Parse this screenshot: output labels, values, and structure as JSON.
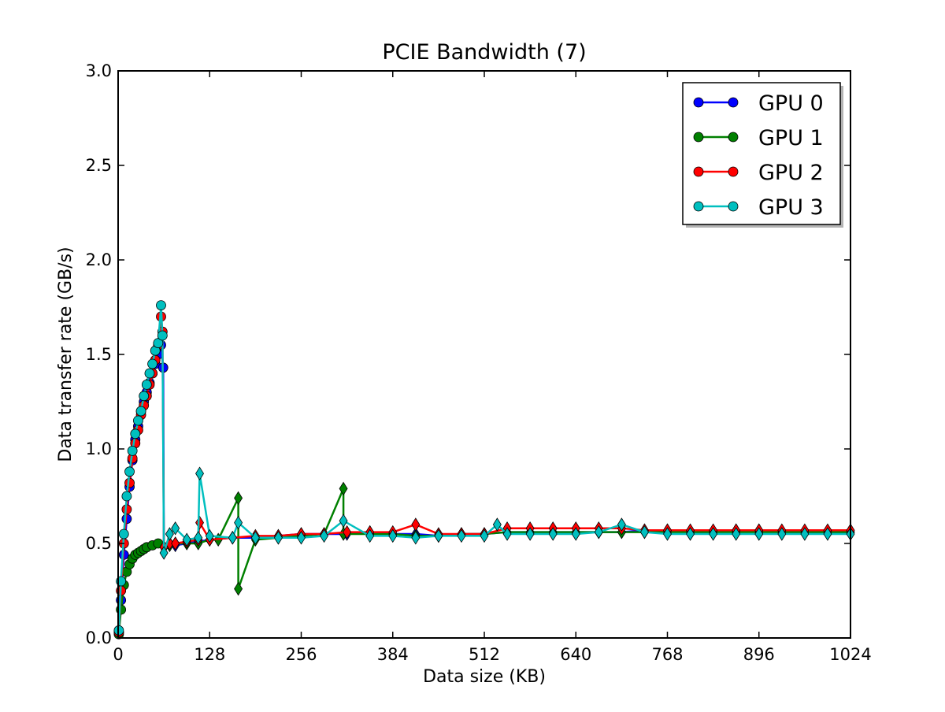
{
  "chart_data": {
    "type": "line",
    "title": "PCIE Bandwidth (7)",
    "xlabel": "Data size (KB)",
    "ylabel": "Data transfer rate (GB/s)",
    "xlim": [
      0,
      1024
    ],
    "ylim": [
      0,
      3.0
    ],
    "xticks": [
      0,
      128,
      256,
      384,
      512,
      640,
      768,
      896,
      1024
    ],
    "xtick_labels": [
      "0",
      "128",
      "256",
      "384",
      "512",
      "640",
      "768",
      "896",
      "1024"
    ],
    "yticks": [
      0,
      0.5,
      1.0,
      1.5,
      2.0,
      2.5,
      3.0
    ],
    "ytick_labels": [
      "0.0",
      "0.5",
      "1.0",
      "1.5",
      "2.0",
      "2.5",
      "3.0"
    ],
    "grid": false,
    "legend": {
      "position": "top-right",
      "entries": [
        "GPU 0",
        "GPU 1",
        "GPU 2",
        "GPU 3"
      ]
    },
    "markers": "circle below 64 KB, diamond above",
    "series": [
      {
        "name": "GPU 0",
        "color": "#0000ff",
        "x": [
          1,
          4,
          8,
          12,
          16,
          20,
          24,
          28,
          32,
          36,
          40,
          44,
          48,
          52,
          56,
          60,
          63,
          64,
          72,
          80,
          96,
          112,
          128,
          160,
          192,
          224,
          256,
          288,
          320,
          352,
          384,
          416,
          448,
          480,
          512,
          544,
          576,
          608,
          640,
          672,
          704,
          736,
          768,
          800,
          832,
          864,
          896,
          928,
          960,
          992,
          1024
        ],
        "y": [
          0.03,
          0.2,
          0.44,
          0.63,
          0.8,
          0.94,
          1.05,
          1.12,
          1.2,
          1.25,
          1.3,
          1.35,
          1.4,
          1.45,
          1.5,
          1.55,
          1.43,
          0.48,
          0.5,
          0.49,
          0.5,
          0.51,
          0.52,
          0.53,
          0.53,
          0.54,
          0.55,
          0.55,
          0.55,
          0.56,
          0.55,
          0.55,
          0.54,
          0.55,
          0.55,
          0.56,
          0.56,
          0.56,
          0.56,
          0.56,
          0.56,
          0.57,
          0.57,
          0.56,
          0.56,
          0.57,
          0.57,
          0.56,
          0.56,
          0.56,
          0.56
        ]
      },
      {
        "name": "GPU 1",
        "color": "#008000",
        "x": [
          1,
          4,
          8,
          12,
          16,
          20,
          24,
          28,
          32,
          36,
          40,
          48,
          56,
          64,
          72,
          80,
          96,
          112,
          128,
          140,
          168,
          168,
          192,
          224,
          256,
          288,
          315,
          315,
          352,
          384,
          416,
          448,
          480,
          512,
          544,
          576,
          608,
          640,
          672,
          704,
          736,
          768,
          800,
          832,
          864,
          896,
          928,
          960,
          992,
          1024
        ],
        "y": [
          0.02,
          0.15,
          0.28,
          0.35,
          0.39,
          0.42,
          0.44,
          0.45,
          0.46,
          0.47,
          0.48,
          0.49,
          0.5,
          0.48,
          0.49,
          0.5,
          0.5,
          0.5,
          0.52,
          0.52,
          0.74,
          0.26,
          0.52,
          0.53,
          0.54,
          0.55,
          0.79,
          0.55,
          0.55,
          0.55,
          0.54,
          0.54,
          0.55,
          0.55,
          0.56,
          0.56,
          0.56,
          0.56,
          0.56,
          0.56,
          0.56,
          0.56,
          0.56,
          0.56,
          0.56,
          0.56,
          0.56,
          0.56,
          0.56,
          0.56
        ]
      },
      {
        "name": "GPU 2",
        "color": "#ff0000",
        "x": [
          1,
          4,
          8,
          12,
          16,
          20,
          24,
          28,
          32,
          36,
          40,
          44,
          48,
          52,
          56,
          60,
          62,
          64,
          72,
          80,
          96,
          112,
          114,
          128,
          160,
          192,
          224,
          256,
          288,
          320,
          352,
          384,
          416,
          448,
          480,
          512,
          544,
          576,
          608,
          640,
          672,
          704,
          736,
          768,
          800,
          832,
          864,
          896,
          928,
          960,
          992,
          1024
        ],
        "y": [
          0.03,
          0.25,
          0.5,
          0.68,
          0.82,
          0.95,
          1.03,
          1.1,
          1.18,
          1.23,
          1.28,
          1.34,
          1.4,
          1.47,
          1.55,
          1.7,
          1.62,
          0.48,
          0.5,
          0.5,
          0.51,
          0.52,
          0.61,
          0.52,
          0.53,
          0.54,
          0.54,
          0.55,
          0.55,
          0.56,
          0.56,
          0.56,
          0.6,
          0.55,
          0.55,
          0.55,
          0.58,
          0.58,
          0.58,
          0.58,
          0.58,
          0.58,
          0.57,
          0.57,
          0.57,
          0.57,
          0.57,
          0.57,
          0.57,
          0.57,
          0.57,
          0.57
        ]
      },
      {
        "name": "GPU 3",
        "color": "#00bfbf",
        "x": [
          1,
          4,
          8,
          12,
          16,
          20,
          24,
          28,
          32,
          36,
          40,
          44,
          48,
          52,
          56,
          60,
          62,
          64,
          72,
          80,
          96,
          112,
          114,
          128,
          160,
          168,
          192,
          224,
          256,
          288,
          315,
          352,
          384,
          416,
          448,
          480,
          512,
          530,
          544,
          576,
          608,
          640,
          672,
          704,
          736,
          768,
          800,
          832,
          864,
          896,
          928,
          960,
          992,
          1024
        ],
        "y": [
          0.04,
          0.3,
          0.55,
          0.75,
          0.88,
          0.99,
          1.08,
          1.15,
          1.2,
          1.28,
          1.34,
          1.4,
          1.45,
          1.52,
          1.56,
          1.76,
          1.6,
          0.45,
          0.55,
          0.58,
          0.52,
          0.53,
          0.87,
          0.54,
          0.53,
          0.61,
          0.53,
          0.53,
          0.53,
          0.54,
          0.62,
          0.54,
          0.54,
          0.53,
          0.54,
          0.54,
          0.54,
          0.6,
          0.55,
          0.55,
          0.55,
          0.55,
          0.56,
          0.6,
          0.56,
          0.55,
          0.55,
          0.55,
          0.55,
          0.55,
          0.55,
          0.55,
          0.55,
          0.55
        ]
      }
    ]
  }
}
